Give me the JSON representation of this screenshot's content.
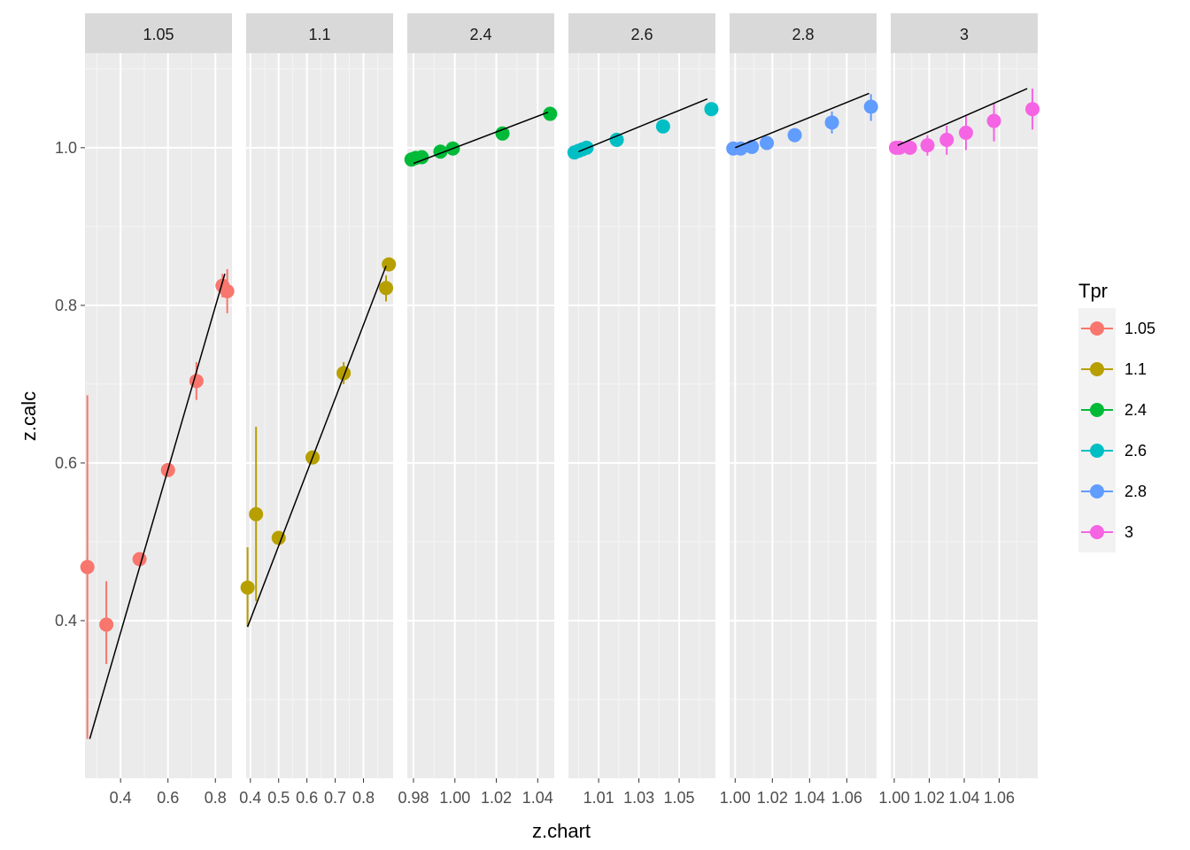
{
  "chart_data": {
    "type": "scatter",
    "facet_variable": "Tpr",
    "xlabel": "z.chart",
    "ylabel": "z.calc",
    "ylim": [
      0.2,
      1.12
    ],
    "y_ticks": [
      {
        "value": 0.4,
        "label": "0.4"
      },
      {
        "value": 0.6,
        "label": "0.6"
      },
      {
        "value": 0.8,
        "label": "0.8"
      },
      {
        "value": 1.0,
        "label": "1.0"
      }
    ],
    "grid": true,
    "legend": {
      "title": "Tpr",
      "position": "right",
      "entries": [
        {
          "label": "1.05",
          "color": "#F8766D"
        },
        {
          "label": "1.1",
          "color": "#B79F00"
        },
        {
          "label": "2.4",
          "color": "#00BA38"
        },
        {
          "label": "2.6",
          "color": "#00BFC4"
        },
        {
          "label": "2.8",
          "color": "#619CFF"
        },
        {
          "label": "3",
          "color": "#F564E3"
        }
      ]
    },
    "facets": [
      {
        "label": "1.05",
        "color": "#F8766D",
        "xlim": [
          0.25,
          0.87
        ],
        "x_ticks": [
          {
            "value": 0.4,
            "label": "0.4"
          },
          {
            "value": 0.6,
            "label": "0.6"
          },
          {
            "value": 0.8,
            "label": "0.8"
          }
        ],
        "points": [
          {
            "x": 0.26,
            "y": 0.468,
            "ymin": 0.25,
            "ymax": 0.686
          },
          {
            "x": 0.34,
            "y": 0.395,
            "ymin": 0.345,
            "ymax": 0.45
          },
          {
            "x": 0.48,
            "y": 0.478,
            "ymin": 0.472,
            "ymax": 0.484
          },
          {
            "x": 0.6,
            "y": 0.591,
            "ymin": 0.586,
            "ymax": 0.596
          },
          {
            "x": 0.72,
            "y": 0.704,
            "ymin": 0.68,
            "ymax": 0.728
          },
          {
            "x": 0.83,
            "y": 0.825,
            "ymin": 0.81,
            "ymax": 0.84
          },
          {
            "x": 0.85,
            "y": 0.818,
            "ymin": 0.79,
            "ymax": 0.846
          }
        ],
        "line": [
          [
            0.27,
            0.25
          ],
          [
            0.84,
            0.84
          ]
        ]
      },
      {
        "label": "1.1",
        "color": "#B79F00",
        "xlim": [
          0.385,
          0.905
        ],
        "x_ticks": [
          {
            "value": 0.4,
            "label": "0.4"
          },
          {
            "value": 0.5,
            "label": "0.5"
          },
          {
            "value": 0.6,
            "label": "0.6"
          },
          {
            "value": 0.7,
            "label": "0.7"
          },
          {
            "value": 0.8,
            "label": "0.8"
          }
        ],
        "points": [
          {
            "x": 0.39,
            "y": 0.442,
            "ymin": 0.393,
            "ymax": 0.493
          },
          {
            "x": 0.42,
            "y": 0.535,
            "ymin": 0.425,
            "ymax": 0.646
          },
          {
            "x": 0.5,
            "y": 0.505,
            "ymin": 0.5,
            "ymax": 0.51
          },
          {
            "x": 0.62,
            "y": 0.607,
            "ymin": 0.602,
            "ymax": 0.612
          },
          {
            "x": 0.73,
            "y": 0.714,
            "ymin": 0.7,
            "ymax": 0.728
          },
          {
            "x": 0.88,
            "y": 0.822,
            "ymin": 0.805,
            "ymax": 0.838
          },
          {
            "x": 0.89,
            "y": 0.852,
            "ymin": 0.845,
            "ymax": 0.858
          }
        ],
        "line": [
          [
            0.39,
            0.392
          ],
          [
            0.88,
            0.85
          ]
        ]
      },
      {
        "label": "2.4",
        "color": "#00BA38",
        "xlim": [
          0.977,
          1.048
        ],
        "x_ticks": [
          {
            "value": 0.98,
            "label": "0.98"
          },
          {
            "value": 1.0,
            "label": "1.00"
          },
          {
            "value": 1.02,
            "label": "1.02"
          },
          {
            "value": 1.04,
            "label": "1.04"
          }
        ],
        "points": [
          {
            "x": 0.979,
            "y": 0.985,
            "ymin": 0.982,
            "ymax": 0.988
          },
          {
            "x": 0.981,
            "y": 0.987,
            "ymin": 0.984,
            "ymax": 0.99
          },
          {
            "x": 0.984,
            "y": 0.988,
            "ymin": 0.985,
            "ymax": 0.991
          },
          {
            "x": 0.993,
            "y": 0.995,
            "ymin": 0.992,
            "ymax": 0.998
          },
          {
            "x": 0.999,
            "y": 0.999,
            "ymin": 0.996,
            "ymax": 1.002
          },
          {
            "x": 1.023,
            "y": 1.018,
            "ymin": 1.014,
            "ymax": 1.022
          },
          {
            "x": 1.046,
            "y": 1.043,
            "ymin": 1.04,
            "ymax": 1.046
          }
        ],
        "line": [
          [
            0.98,
            0.98
          ],
          [
            1.045,
            1.045
          ]
        ]
      },
      {
        "label": "2.6",
        "color": "#00BFC4",
        "xlim": [
          0.995,
          1.068
        ],
        "x_ticks": [
          {
            "value": 1.01,
            "label": "1.01"
          },
          {
            "value": 1.03,
            "label": "1.03"
          },
          {
            "value": 1.05,
            "label": "1.05"
          }
        ],
        "points": [
          {
            "x": 0.998,
            "y": 0.994,
            "ymin": 0.991,
            "ymax": 0.997
          },
          {
            "x": 1.0,
            "y": 0.996,
            "ymin": 0.993,
            "ymax": 0.999
          },
          {
            "x": 1.002,
            "y": 0.998,
            "ymin": 0.995,
            "ymax": 1.001
          },
          {
            "x": 1.004,
            "y": 1.0,
            "ymin": 0.997,
            "ymax": 1.003
          },
          {
            "x": 1.019,
            "y": 1.01,
            "ymin": 1.005,
            "ymax": 1.015
          },
          {
            "x": 1.042,
            "y": 1.027,
            "ymin": 1.022,
            "ymax": 1.032
          },
          {
            "x": 1.066,
            "y": 1.049,
            "ymin": 1.042,
            "ymax": 1.056
          }
        ],
        "line": [
          [
            1.0,
            0.995
          ],
          [
            1.064,
            1.062
          ]
        ]
      },
      {
        "label": "2.8",
        "color": "#619CFF",
        "xlim": [
          0.997,
          1.076
        ],
        "x_ticks": [
          {
            "value": 1.0,
            "label": "1.00"
          },
          {
            "value": 1.02,
            "label": "1.02"
          },
          {
            "value": 1.04,
            "label": "1.04"
          },
          {
            "value": 1.06,
            "label": "1.06"
          }
        ],
        "points": [
          {
            "x": 0.999,
            "y": 0.999,
            "ymin": 0.996,
            "ymax": 1.002
          },
          {
            "x": 1.003,
            "y": 0.999,
            "ymin": 0.996,
            "ymax": 1.002
          },
          {
            "x": 1.009,
            "y": 1.001,
            "ymin": 0.997,
            "ymax": 1.005
          },
          {
            "x": 1.017,
            "y": 1.006,
            "ymin": 1.0,
            "ymax": 1.012
          },
          {
            "x": 1.032,
            "y": 1.016,
            "ymin": 1.007,
            "ymax": 1.024
          },
          {
            "x": 1.052,
            "y": 1.032,
            "ymin": 1.018,
            "ymax": 1.046
          },
          {
            "x": 1.073,
            "y": 1.052,
            "ymin": 1.034,
            "ymax": 1.068
          }
        ],
        "line": [
          [
            1.0,
            1.0
          ],
          [
            1.072,
            1.069
          ]
        ]
      },
      {
        "label": "3",
        "color": "#F564E3",
        "xlim": [
          0.998,
          1.082
        ],
        "x_ticks": [
          {
            "value": 1.0,
            "label": "1.00"
          },
          {
            "value": 1.02,
            "label": "1.02"
          },
          {
            "value": 1.04,
            "label": "1.04"
          },
          {
            "value": 1.06,
            "label": "1.06"
          }
        ],
        "points": [
          {
            "x": 1.001,
            "y": 1.0,
            "ymin": 0.996,
            "ymax": 1.004
          },
          {
            "x": 1.003,
            "y": 1.0,
            "ymin": 0.996,
            "ymax": 1.004
          },
          {
            "x": 1.009,
            "y": 1.0,
            "ymin": 0.994,
            "ymax": 1.006
          },
          {
            "x": 1.019,
            "y": 1.003,
            "ymin": 0.99,
            "ymax": 1.016
          },
          {
            "x": 1.03,
            "y": 1.01,
            "ymin": 0.991,
            "ymax": 1.028
          },
          {
            "x": 1.041,
            "y": 1.019,
            "ymin": 0.997,
            "ymax": 1.04
          },
          {
            "x": 1.057,
            "y": 1.034,
            "ymin": 1.008,
            "ymax": 1.057
          },
          {
            "x": 1.079,
            "y": 1.049,
            "ymin": 1.023,
            "ymax": 1.075
          }
        ],
        "line": [
          [
            1.002,
            1.003
          ],
          [
            1.076,
            1.075
          ]
        ]
      }
    ]
  }
}
